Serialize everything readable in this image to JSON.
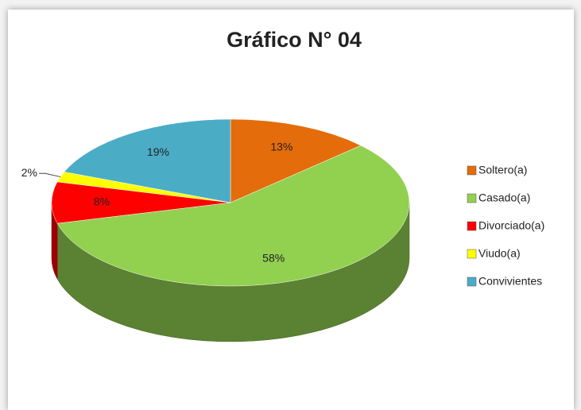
{
  "chart_data": {
    "type": "pie",
    "title": "Gráfico N° 04",
    "categories": [
      "Soltero(a)",
      "Casado(a)",
      "Divorciado(a)",
      "Viudo(a)",
      "Convivientes"
    ],
    "values": [
      13,
      58,
      8,
      2,
      19
    ],
    "value_labels": [
      "13%",
      "58%",
      "8%",
      "2%",
      "19%"
    ],
    "colors": [
      "#e46c0a",
      "#92d050",
      "#ff0000",
      "#ffff00",
      "#4bacc6"
    ],
    "legend": "right"
  }
}
